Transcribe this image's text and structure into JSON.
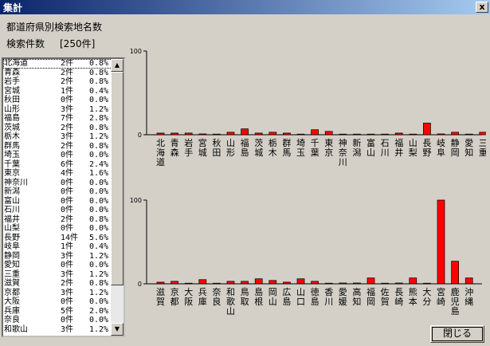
{
  "window": {
    "title": "集計",
    "close_glyph": "x"
  },
  "heading": "都道府県別検索地名数",
  "count_label": "検索件数",
  "count_value": "[250件]",
  "close_button": "閉じる",
  "list": [
    {
      "name": "北海道",
      "count": "2件",
      "pct": "0.8%"
    },
    {
      "name": "青森",
      "count": "2件",
      "pct": "0.8%"
    },
    {
      "name": "岩手",
      "count": "2件",
      "pct": "0.8%"
    },
    {
      "name": "宮城",
      "count": "1件",
      "pct": "0.4%"
    },
    {
      "name": "秋田",
      "count": "0件",
      "pct": "0.0%"
    },
    {
      "name": "山形",
      "count": "3件",
      "pct": "1.2%"
    },
    {
      "name": "福島",
      "count": "7件",
      "pct": "2.8%"
    },
    {
      "name": "茨城",
      "count": "2件",
      "pct": "0.8%"
    },
    {
      "name": "栃木",
      "count": "3件",
      "pct": "1.2%"
    },
    {
      "name": "群馬",
      "count": "2件",
      "pct": "0.8%"
    },
    {
      "name": "埼玉",
      "count": "0件",
      "pct": "0.0%"
    },
    {
      "name": "千葉",
      "count": "6件",
      "pct": "2.4%"
    },
    {
      "name": "東京",
      "count": "4件",
      "pct": "1.6%"
    },
    {
      "name": "神奈川",
      "count": "0件",
      "pct": "0.0%"
    },
    {
      "name": "新潟",
      "count": "0件",
      "pct": "0.0%"
    },
    {
      "name": "富山",
      "count": "0件",
      "pct": "0.0%"
    },
    {
      "name": "石川",
      "count": "0件",
      "pct": "0.0%"
    },
    {
      "name": "福井",
      "count": "2件",
      "pct": "0.8%"
    },
    {
      "name": "山梨",
      "count": "0件",
      "pct": "0.0%"
    },
    {
      "name": "長野",
      "count": "14件",
      "pct": "5.6%"
    },
    {
      "name": "岐阜",
      "count": "1件",
      "pct": "0.4%"
    },
    {
      "name": "静岡",
      "count": "3件",
      "pct": "1.2%"
    },
    {
      "name": "愛知",
      "count": "0件",
      "pct": "0.0%"
    },
    {
      "name": "三重",
      "count": "3件",
      "pct": "1.2%"
    },
    {
      "name": "滋賀",
      "count": "2件",
      "pct": "0.8%"
    },
    {
      "name": "京都",
      "count": "3件",
      "pct": "1.2%"
    },
    {
      "name": "大阪",
      "count": "0件",
      "pct": "0.0%"
    },
    {
      "name": "兵庫",
      "count": "5件",
      "pct": "2.0%"
    },
    {
      "name": "奈良",
      "count": "0件",
      "pct": "0.0%"
    },
    {
      "name": "和歌山",
      "count": "3件",
      "pct": "1.2%"
    }
  ],
  "chart_data": [
    {
      "type": "bar",
      "ylim": [
        0,
        100
      ],
      "yticks": [
        "100",
        "0"
      ],
      "color": "#ff0000",
      "categories": [
        "北海道",
        "青森",
        "岩手",
        "宮城",
        "秋田",
        "山形",
        "福島",
        "茨城",
        "栃木",
        "群馬",
        "埼玉",
        "千葉",
        "東京",
        "神奈川",
        "新潟",
        "富山",
        "石川",
        "福井",
        "山梨",
        "長野",
        "岐阜",
        "静岡",
        "愛知",
        "三重"
      ],
      "values": [
        2,
        2,
        2,
        1,
        0,
        3,
        7,
        2,
        3,
        2,
        0,
        6,
        4,
        0,
        0,
        0,
        0,
        2,
        0,
        14,
        1,
        3,
        0,
        3
      ]
    },
    {
      "type": "bar",
      "ylim": [
        0,
        100
      ],
      "yticks": [
        "100",
        "0"
      ],
      "color": "#ff0000",
      "categories": [
        "滋賀",
        "京都",
        "大阪",
        "兵庫",
        "奈良",
        "和歌山",
        "鳥取",
        "島根",
        "岡山",
        "広島",
        "山口",
        "徳島",
        "香川",
        "愛媛",
        "高知",
        "福岡",
        "佐賀",
        "長崎",
        "熊本",
        "大分",
        "宮崎",
        "鹿児島",
        "沖縄"
      ],
      "values": [
        2,
        3,
        0,
        5,
        0,
        3,
        3,
        6,
        4,
        2,
        6,
        3,
        0,
        1,
        1,
        7,
        0,
        1,
        7,
        0,
        100,
        27,
        7
      ]
    }
  ]
}
